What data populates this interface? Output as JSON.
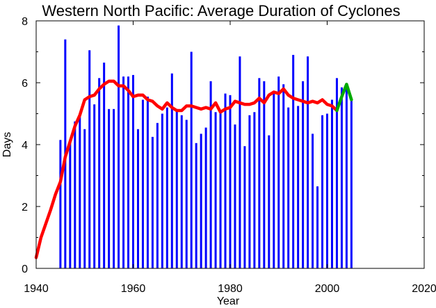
{
  "chart_data": {
    "type": "bar",
    "title": "Western North Pacific: Average Duration of Cyclones",
    "xlabel": "Year",
    "ylabel": "Days",
    "xlim": [
      1940,
      2020
    ],
    "ylim": [
      0,
      8
    ],
    "xticks": [
      1940,
      1960,
      1980,
      2000,
      2020
    ],
    "yticks": [
      0,
      2,
      4,
      6,
      8
    ],
    "grid": false,
    "colors": {
      "bars": "#0000ff",
      "trend": "#ff0000",
      "recent": "#00aa00"
    },
    "bars": {
      "x": [
        1945,
        1946,
        1947,
        1948,
        1949,
        1950,
        1951,
        1952,
        1953,
        1954,
        1955,
        1956,
        1957,
        1958,
        1959,
        1960,
        1961,
        1962,
        1963,
        1964,
        1965,
        1966,
        1967,
        1968,
        1969,
        1970,
        1971,
        1972,
        1973,
        1974,
        1975,
        1976,
        1977,
        1978,
        1979,
        1980,
        1981,
        1982,
        1983,
        1984,
        1985,
        1986,
        1987,
        1988,
        1989,
        1990,
        1991,
        1992,
        1993,
        1994,
        1995,
        1996,
        1997,
        1998,
        1999,
        2000,
        2001,
        2002,
        2003,
        2004,
        2005
      ],
      "values": [
        4.15,
        7.4,
        4.1,
        4.75,
        4.95,
        4.5,
        7.05,
        5.3,
        6.15,
        6.65,
        5.15,
        5.15,
        7.85,
        6.2,
        6.2,
        6.25,
        4.5,
        5.45,
        5.55,
        4.25,
        4.7,
        5.0,
        5.2,
        6.3,
        5.15,
        4.95,
        4.8,
        7.0,
        4.05,
        4.35,
        4.55,
        6.05,
        5.05,
        5.05,
        5.65,
        5.6,
        4.65,
        6.85,
        3.95,
        4.95,
        5.05,
        6.15,
        6.05,
        4.3,
        5.65,
        6.2,
        5.95,
        5.2,
        6.9,
        5.25,
        6.05,
        6.85,
        4.35,
        2.65,
        4.95,
        5.0,
        5.45,
        6.15,
        5.85,
        5.95,
        5.45
      ]
    },
    "series": [
      {
        "x": [
          1940,
          1941,
          1942,
          1943,
          1944,
          1945,
          1946,
          1947,
          1948,
          1949,
          1950,
          1951,
          1952,
          1953,
          1954,
          1955,
          1956,
          1957,
          1958,
          1959,
          1960,
          1961,
          1962,
          1963,
          1964,
          1965,
          1966,
          1967,
          1968,
          1969,
          1970,
          1971,
          1972,
          1973,
          1974,
          1975,
          1976,
          1977,
          1978,
          1979,
          1980,
          1981,
          1982,
          1983,
          1984,
          1985,
          1986,
          1987,
          1988,
          1989,
          1990,
          1991,
          1992,
          1993,
          1994,
          1995,
          1996,
          1997,
          1998,
          1999,
          2000,
          2001,
          2002
        ],
        "values": [
          0.35,
          1.0,
          1.45,
          1.9,
          2.4,
          2.8,
          3.6,
          4.1,
          4.6,
          4.95,
          5.45,
          5.55,
          5.6,
          5.8,
          5.95,
          6.05,
          6.05,
          5.9,
          5.9,
          5.75,
          5.55,
          5.6,
          5.6,
          5.45,
          5.4,
          5.25,
          5.15,
          5.35,
          5.2,
          5.1,
          5.1,
          5.25,
          5.25,
          5.2,
          5.15,
          5.2,
          5.15,
          5.35,
          5.05,
          5.15,
          5.2,
          5.4,
          5.35,
          5.3,
          5.3,
          5.35,
          5.5,
          5.35,
          5.6,
          5.7,
          5.65,
          5.8,
          5.6,
          5.5,
          5.45,
          5.4,
          5.35,
          5.4,
          5.35,
          5.45,
          5.3,
          5.25,
          5.1
        ]
      },
      {
        "x": [
          2002,
          2003,
          2004,
          2005
        ],
        "values": [
          5.1,
          5.55,
          5.95,
          5.45
        ]
      }
    ]
  }
}
